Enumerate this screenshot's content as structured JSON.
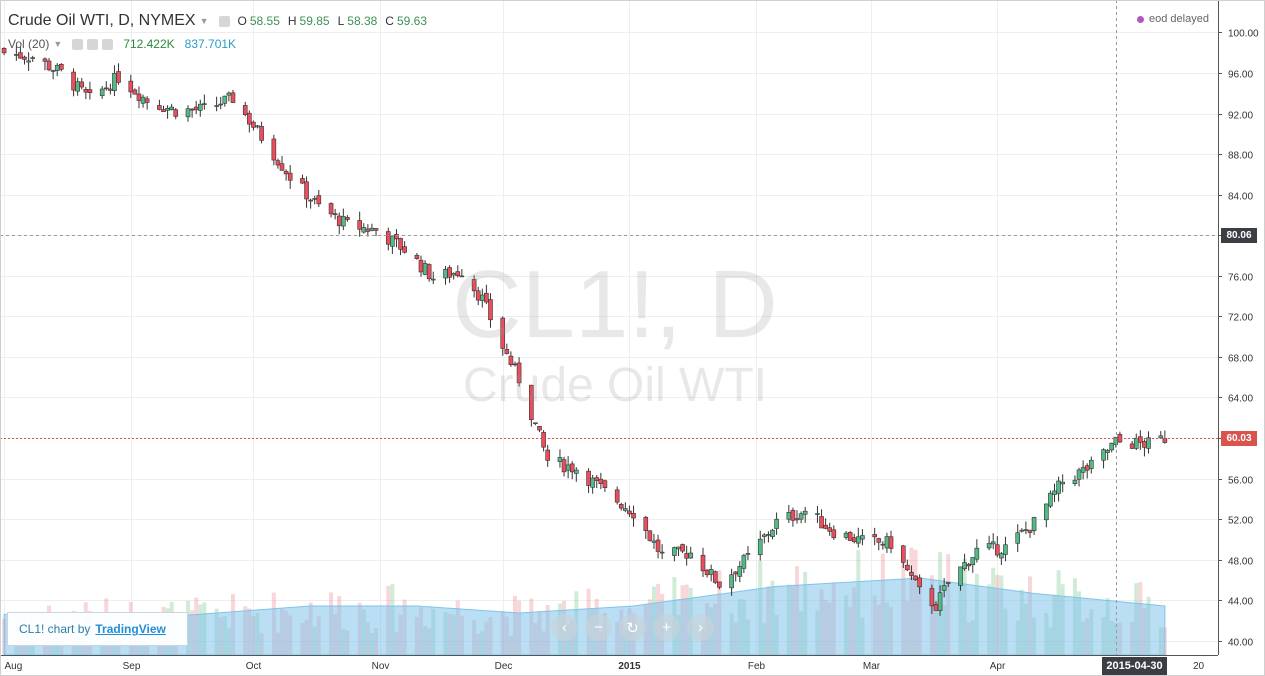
{
  "header": {
    "symbol_title": "Crude Oil WTI, D, NYMEX",
    "ohlc": [
      {
        "key": "O",
        "value": "58.55"
      },
      {
        "key": "H",
        "value": "59.85"
      },
      {
        "key": "L",
        "value": "58.38"
      },
      {
        "key": "C",
        "value": "59.63"
      }
    ],
    "volume_label": "Vol (20)",
    "volume_value": "712.422K",
    "volume_ma_value": "837.701K"
  },
  "status_badge": "eod delayed",
  "watermark": {
    "symbol": "CL1!, D",
    "name": "Crude Oil WTI"
  },
  "credit": {
    "prefix": "CL1! chart by",
    "link": "TradingView"
  },
  "nav_buttons": [
    {
      "name": "scroll-left",
      "glyph": "‹"
    },
    {
      "name": "zoom-out",
      "glyph": "−"
    },
    {
      "name": "reset",
      "glyph": "↻"
    },
    {
      "name": "zoom-in",
      "glyph": "+"
    },
    {
      "name": "scroll-right",
      "glyph": "›"
    }
  ],
  "crosshair": {
    "date": "2015-04-30",
    "price": "80.06"
  },
  "last_price": "60.03",
  "colors": {
    "up": "#53b987",
    "down": "#eb4d5c",
    "volume_ma": "#8fd0f2",
    "last_price": "#d9534f",
    "crosshair_badge": "#3b3f45"
  },
  "chart_data": {
    "type": "candlestick",
    "title": "Crude Oil WTI, D, NYMEX",
    "y_range": [
      38.6,
      103.2
    ],
    "y_ticks": [
      "100.00",
      "96.00",
      "92.00",
      "88.00",
      "84.00",
      "80.00",
      "76.00",
      "72.00",
      "68.00",
      "64.00",
      "60.00",
      "56.00",
      "52.00",
      "48.00",
      "44.00",
      "40.00"
    ],
    "x_ticks": [
      "Aug",
      "Sep",
      "Oct",
      "Nov",
      "Dec",
      "2015",
      "Feb",
      "Mar",
      "Apr",
      "20"
    ],
    "grid": true,
    "close_anchors": [
      {
        "date": "2014-08-01",
        "close": 98.0
      },
      {
        "date": "2014-08-08",
        "close": 97.6
      },
      {
        "date": "2014-08-15",
        "close": 96.0
      },
      {
        "date": "2014-08-22",
        "close": 93.4
      },
      {
        "date": "2014-08-29",
        "close": 95.6
      },
      {
        "date": "2014-09-05",
        "close": 93.3
      },
      {
        "date": "2014-09-12",
        "close": 92.3
      },
      {
        "date": "2014-09-19",
        "close": 92.4
      },
      {
        "date": "2014-09-26",
        "close": 93.5
      },
      {
        "date": "2014-10-03",
        "close": 89.7
      },
      {
        "date": "2014-10-10",
        "close": 85.8
      },
      {
        "date": "2014-10-17",
        "close": 82.8
      },
      {
        "date": "2014-10-24",
        "close": 81.0
      },
      {
        "date": "2014-10-31",
        "close": 80.5
      },
      {
        "date": "2014-11-07",
        "close": 78.6
      },
      {
        "date": "2014-11-14",
        "close": 75.8
      },
      {
        "date": "2014-11-21",
        "close": 76.5
      },
      {
        "date": "2014-11-26",
        "close": 73.7
      },
      {
        "date": "2014-12-01",
        "close": 69.0
      },
      {
        "date": "2014-12-05",
        "close": 65.8
      },
      {
        "date": "2014-12-12",
        "close": 57.8
      },
      {
        "date": "2014-12-19",
        "close": 57.0
      },
      {
        "date": "2014-12-26",
        "close": 54.7
      },
      {
        "date": "2015-01-02",
        "close": 52.7
      },
      {
        "date": "2015-01-09",
        "close": 48.4
      },
      {
        "date": "2015-01-16",
        "close": 48.7
      },
      {
        "date": "2015-01-23",
        "close": 45.6
      },
      {
        "date": "2015-01-30",
        "close": 48.2
      },
      {
        "date": "2015-02-06",
        "close": 51.7
      },
      {
        "date": "2015-02-13",
        "close": 52.8
      },
      {
        "date": "2015-02-20",
        "close": 50.8
      },
      {
        "date": "2015-02-27",
        "close": 49.8
      },
      {
        "date": "2015-03-06",
        "close": 49.6
      },
      {
        "date": "2015-03-13",
        "close": 44.8
      },
      {
        "date": "2015-03-17",
        "close": 43.5
      },
      {
        "date": "2015-03-20",
        "close": 45.7
      },
      {
        "date": "2015-03-27",
        "close": 48.9
      },
      {
        "date": "2015-04-03",
        "close": 49.2
      },
      {
        "date": "2015-04-10",
        "close": 51.6
      },
      {
        "date": "2015-04-17",
        "close": 55.7
      },
      {
        "date": "2015-04-24",
        "close": 57.2
      },
      {
        "date": "2015-04-30",
        "close": 59.6
      },
      {
        "date": "2015-05-08",
        "close": 59.4
      },
      {
        "date": "2015-05-12",
        "close": 60.0
      }
    ],
    "volume_ma_anchors": [
      {
        "date": "2014-08-01",
        "value": 0.58
      },
      {
        "date": "2014-09-15",
        "value": 0.57
      },
      {
        "date": "2014-10-15",
        "value": 0.7
      },
      {
        "date": "2014-11-10",
        "value": 0.7
      },
      {
        "date": "2014-12-05",
        "value": 0.6
      },
      {
        "date": "2015-01-02",
        "value": 0.7
      },
      {
        "date": "2015-02-06",
        "value": 0.98
      },
      {
        "date": "2015-03-13",
        "value": 1.1
      },
      {
        "date": "2015-04-10",
        "value": 0.88
      },
      {
        "date": "2015-05-12",
        "value": 0.7
      }
    ]
  }
}
